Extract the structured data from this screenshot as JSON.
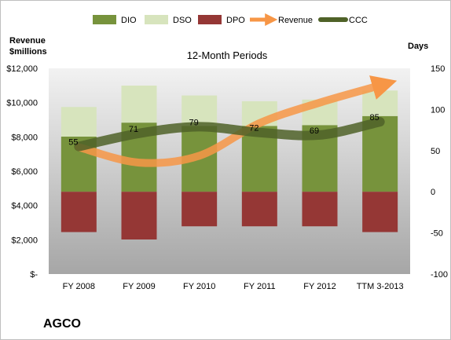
{
  "chart_data": {
    "type": "bar",
    "title": "12-Month Periods",
    "company": "AGCO",
    "left_axis_label_line1": "Revenue",
    "left_axis_label_line2": "$millions",
    "right_axis_label": "Days",
    "categories": [
      "FY 2008",
      "FY 2009",
      "FY 2010",
      "FY 2011",
      "FY 2012",
      "TTM 3-2013"
    ],
    "left_ticks": [
      "$12,000",
      "$10,000",
      "$8,000",
      "$6,000",
      "$4,000",
      "$2,000",
      "$-"
    ],
    "right_ticks": [
      "150",
      "100",
      "50",
      "0",
      "-50",
      "-100"
    ],
    "left_range": [
      0,
      12000
    ],
    "right_range": [
      -100,
      150
    ],
    "series": [
      {
        "name": "DIO",
        "axis": "days",
        "values": [
          67,
          84,
          80,
          80,
          81,
          92
        ]
      },
      {
        "name": "DSO",
        "axis": "days",
        "values": [
          36,
          45,
          37,
          30,
          31,
          31
        ]
      },
      {
        "name": "DPO",
        "axis": "days",
        "values": [
          -49,
          -58,
          -42,
          -42,
          -42,
          -49
        ]
      },
      {
        "name": "Revenue",
        "axis": "revenue",
        "values": [
          7400,
          6500,
          6900,
          8800,
          10000,
          11000
        ]
      },
      {
        "name": "CCC",
        "axis": "days",
        "values": [
          55,
          71,
          79,
          72,
          69,
          85
        ]
      }
    ],
    "ccc_labels": [
      "55",
      "71",
      "79",
      "72",
      "69",
      "85"
    ],
    "colors": {
      "DIO": "#77933c",
      "DSO": "#d7e4bd",
      "DPO": "#953735",
      "Revenue": "#f79646",
      "CCC": "#4f6228",
      "plot_bg_top": "#f2f2f2",
      "plot_bg_bottom": "#a6a6a6"
    },
    "legend_position": "top",
    "grid": false
  }
}
